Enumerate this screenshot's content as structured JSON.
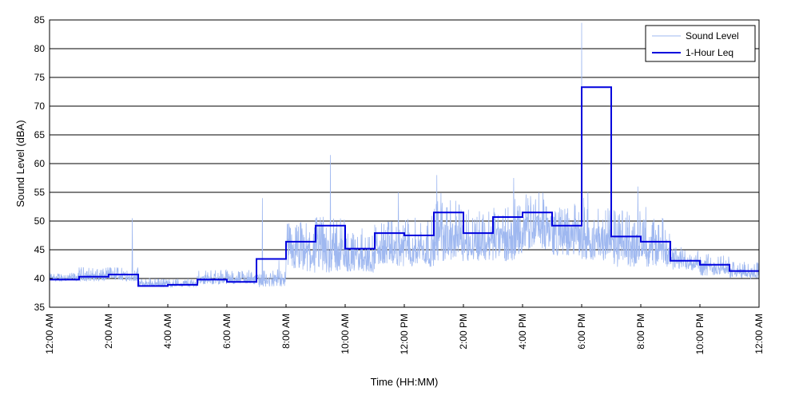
{
  "chart_data": {
    "type": "line",
    "xlabel": "Time (HH:MM)",
    "ylabel": "Sound Level (dBA)",
    "ylim": [
      35,
      85
    ],
    "yticks": [
      35,
      40,
      45,
      50,
      55,
      60,
      65,
      70,
      75,
      80,
      85
    ],
    "xlim": [
      0,
      24
    ],
    "xticks": [
      0,
      2,
      4,
      6,
      8,
      10,
      12,
      14,
      16,
      18,
      20,
      22,
      24
    ],
    "xtick_labels": [
      "12:00 AM",
      "2:00 AM",
      "4:00 AM",
      "6:00 AM",
      "8:00 AM",
      "10:00 AM",
      "12:00 PM",
      "2:00 PM",
      "4:00 PM",
      "6:00 PM",
      "8:00 PM",
      "10:00 PM",
      "12:00 AM"
    ],
    "grid": "horizontal",
    "legend_position": "top-right",
    "series": [
      {
        "name": "Sound Level",
        "color": "#9fb8f0",
        "style": "thin-line",
        "hourly_base": [
          39.5,
          39.5,
          39.5,
          38.5,
          38.5,
          39.0,
          39.0,
          38.5,
          41.0,
          41.0,
          41.0,
          42.0,
          42.0,
          43.0,
          43.0,
          43.0,
          45.0,
          44.0,
          43.0,
          42.0,
          42.0,
          41.5,
          40.5,
          40.0
        ],
        "hourly_amplitude": [
          1.5,
          2.5,
          2.5,
          1.5,
          1.5,
          2.5,
          2.5,
          3.0,
          9.0,
          10.0,
          7.0,
          8.0,
          9.0,
          11.0,
          9.0,
          10.0,
          10.0,
          9.0,
          10.0,
          10.0,
          9.0,
          4.0,
          4.0,
          3.0
        ],
        "peaks": [
          {
            "x": 2.8,
            "y": 50.5
          },
          {
            "x": 9.5,
            "y": 61.5
          },
          {
            "x": 18.0,
            "y": 84.5
          },
          {
            "x": 13.1,
            "y": 58.0
          },
          {
            "x": 15.7,
            "y": 57.5
          },
          {
            "x": 7.2,
            "y": 54.0
          },
          {
            "x": 11.8,
            "y": 55.0
          },
          {
            "x": 19.9,
            "y": 56.0
          }
        ]
      },
      {
        "name": "1-Hour Leq",
        "color": "#0000dd",
        "style": "step",
        "x": [
          0,
          1,
          2,
          3,
          4,
          5,
          6,
          7,
          8,
          9,
          10,
          11,
          12,
          13,
          14,
          15,
          16,
          17,
          18,
          19,
          20,
          21,
          22,
          23
        ],
        "values": [
          39.8,
          40.3,
          40.7,
          38.7,
          38.9,
          39.8,
          39.4,
          43.4,
          46.4,
          49.2,
          45.2,
          47.9,
          47.5,
          51.5,
          47.9,
          50.7,
          51.5,
          49.2,
          73.3,
          47.3,
          46.4,
          43.1,
          42.4,
          41.3
        ]
      }
    ]
  }
}
